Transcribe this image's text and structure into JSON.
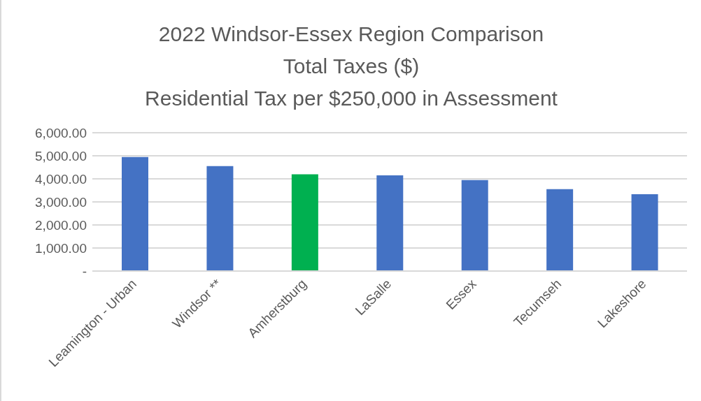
{
  "chart_data": {
    "type": "bar",
    "title": "2022 Windsor-Essex Region Comparison\nTotal Taxes ($)\nResidential Tax per  $250,000 in Assessment",
    "categories": [
      "Leamington - Urban",
      "Windsor **",
      "Amherstburg",
      "LaSalle",
      "Essex",
      "Tecumseh",
      "Lakeshore"
    ],
    "values": [
      4950,
      4550,
      4200,
      4150,
      3950,
      3550,
      3330
    ],
    "colors": [
      "#4472c4",
      "#4472c4",
      "#00b050",
      "#4472c4",
      "#4472c4",
      "#4472c4",
      "#4472c4"
    ],
    "ylim": [
      0,
      6000
    ],
    "yticks": [
      {
        "value": 0,
        "label": "-"
      },
      {
        "value": 1000,
        "label": "1,000.00"
      },
      {
        "value": 2000,
        "label": "2,000.00"
      },
      {
        "value": 3000,
        "label": "3,000.00"
      },
      {
        "value": 4000,
        "label": "4,000.00"
      },
      {
        "value": 5000,
        "label": "5,000.00"
      },
      {
        "value": 6000,
        "label": "6,000.00"
      }
    ],
    "grid": "y",
    "legend": false
  }
}
